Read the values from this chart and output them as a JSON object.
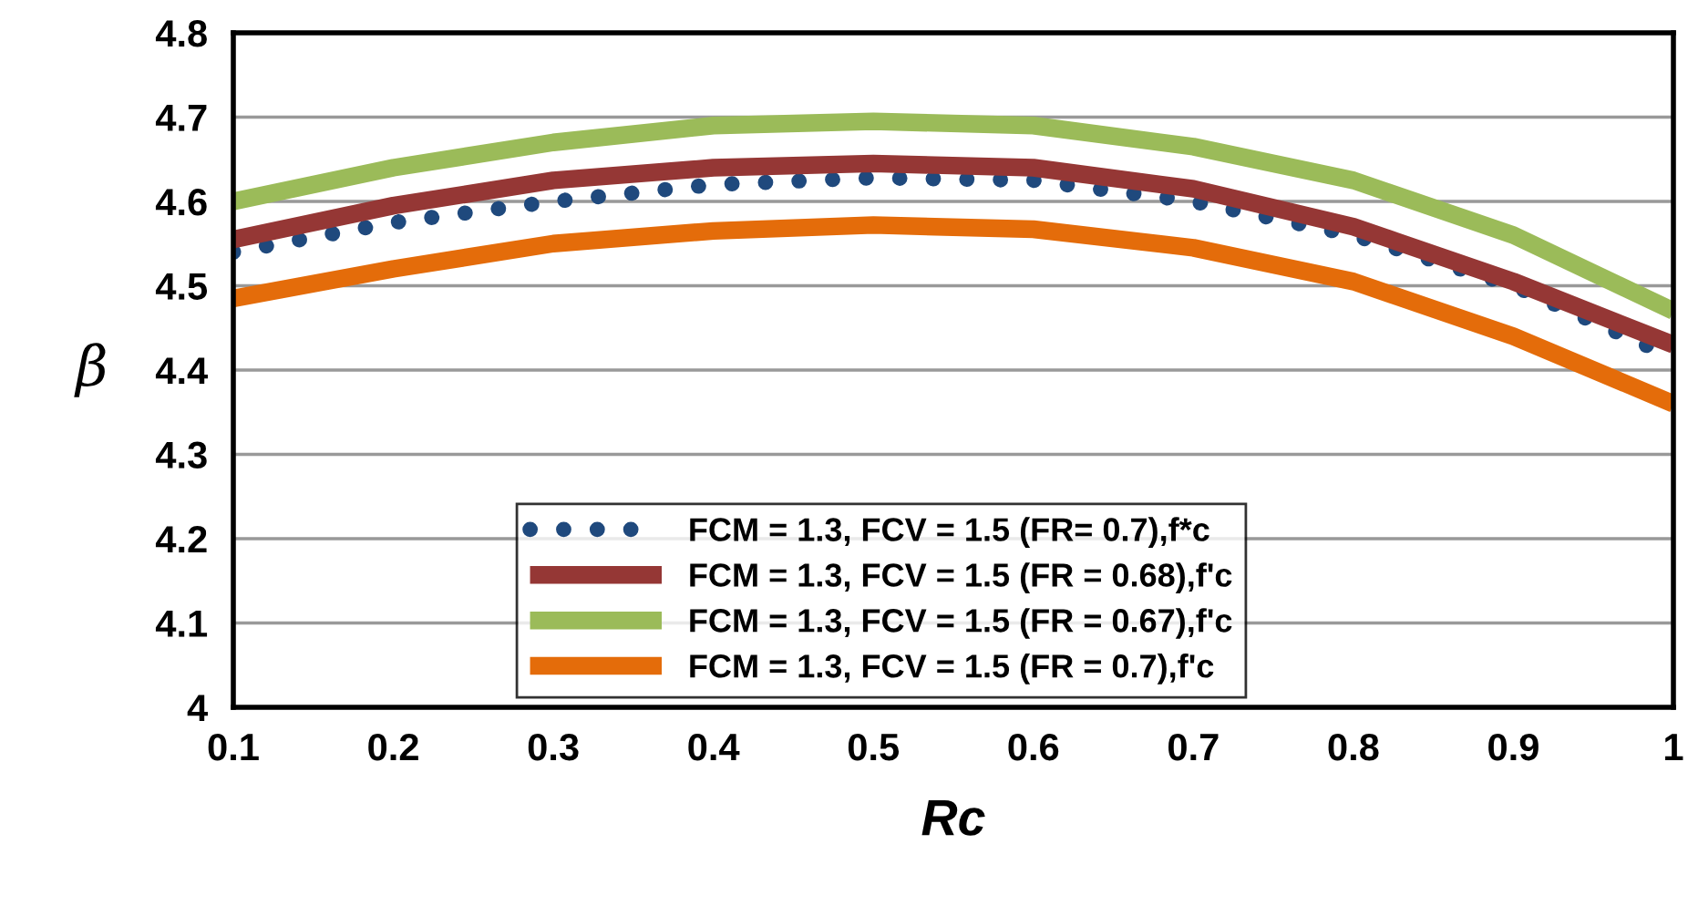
{
  "chart_data": {
    "type": "line",
    "xlabel": "Rc",
    "ylabel": "β",
    "x": [
      0.1,
      0.2,
      0.3,
      0.4,
      0.5,
      0.6,
      0.7,
      0.8,
      0.9,
      1.0
    ],
    "series": [
      {
        "name": "FCM = 1.3, FCV = 1.5 (FR= 0.7),f*c",
        "color": "#1f497d",
        "line_style": "dotted",
        "values": [
          4.54,
          4.575,
          4.6,
          4.62,
          4.628,
          4.625,
          4.6,
          4.56,
          4.5,
          4.415
        ]
      },
      {
        "name": "FCM = 1.3, FCV = 1.5 (FR = 0.68),f'c",
        "color": "#953735",
        "line_style": "solid",
        "values": [
          4.555,
          4.595,
          4.625,
          4.64,
          4.645,
          4.64,
          4.615,
          4.57,
          4.505,
          4.43
        ]
      },
      {
        "name": "FCM = 1.3, FCV = 1.5 (FR = 0.67),f'c",
        "color": "#9bbb59",
        "line_style": "solid",
        "values": [
          4.6,
          4.64,
          4.67,
          4.69,
          4.695,
          4.69,
          4.665,
          4.625,
          4.56,
          4.47
        ]
      },
      {
        "name": "FCM = 1.3, FCV = 1.5 (FR = 0.7),f'c",
        "color": "#e46c0a",
        "line_style": "solid",
        "values": [
          4.485,
          4.52,
          4.55,
          4.565,
          4.572,
          4.567,
          4.545,
          4.505,
          4.44,
          4.36
        ]
      }
    ],
    "xlim": [
      0.1,
      1
    ],
    "xticks": [
      0.1,
      0.2,
      0.3,
      0.4,
      0.5,
      0.6,
      0.7,
      0.8,
      0.9,
      1
    ],
    "ylim": [
      4,
      4.8
    ],
    "yticks": [
      4,
      4.1,
      4.2,
      4.3,
      4.4,
      4.5,
      4.6,
      4.7,
      4.8
    ],
    "grid": "y",
    "legend": "bottom",
    "marker": "none"
  }
}
